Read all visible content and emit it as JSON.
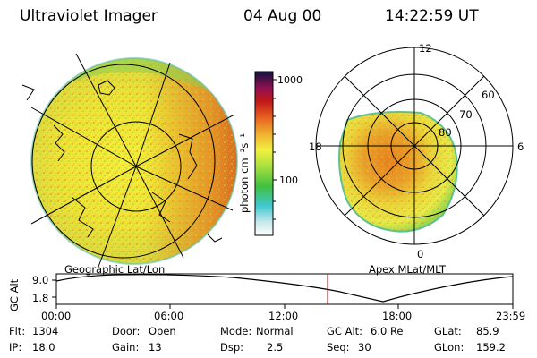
{
  "header": {
    "instrument": "Ultraviolet Imager",
    "date": "04 Aug 00",
    "time": "14:22:59 UT"
  },
  "geo_panel": {
    "label": "Geographic Lat/Lon"
  },
  "polar_panel": {
    "label": "Apex MLat/MLT",
    "mlt_labels": {
      "top": "12",
      "left": "18",
      "right": "6",
      "bottom": "0"
    },
    "lat_labels": [
      "60",
      "70",
      "80"
    ]
  },
  "colorbar": {
    "unit_label": "photon cm⁻²s⁻¹",
    "ticks": [
      "1000",
      "100"
    ],
    "scale": "log"
  },
  "altitude_plot": {
    "ylabel": "GC Alt",
    "yticks": [
      "9.0",
      "1.8"
    ],
    "xticks": [
      "00:00",
      "06:00",
      "12:00",
      "18:00",
      "23:59"
    ],
    "marker_color": "#cc0000"
  },
  "info": {
    "flt_label": "Flt:",
    "flt_value": "1304",
    "door_label": "Door:",
    "door_value": "Open",
    "mode_label": "Mode:",
    "mode_value": "Normal",
    "gcalt_label": "GC Alt:",
    "gcalt_value": "6.0 Re",
    "glat_label": "GLat:",
    "glat_value": "85.9",
    "ip_label": "IP:",
    "ip_value": "18.0",
    "gain_label": "Gain:",
    "gain_value": "13",
    "dsp_label": "Dsp:",
    "dsp_value": "2.5",
    "seq_label": "Seq:",
    "seq_value": "30",
    "glon_label": "GLon:",
    "glon_value": "159.2"
  },
  "colors": {
    "auroral_yellow": "#e8e040",
    "auroral_orange": "#e88020",
    "auroral_green": "#80d040",
    "edge_cyan": "#60c0c0"
  }
}
